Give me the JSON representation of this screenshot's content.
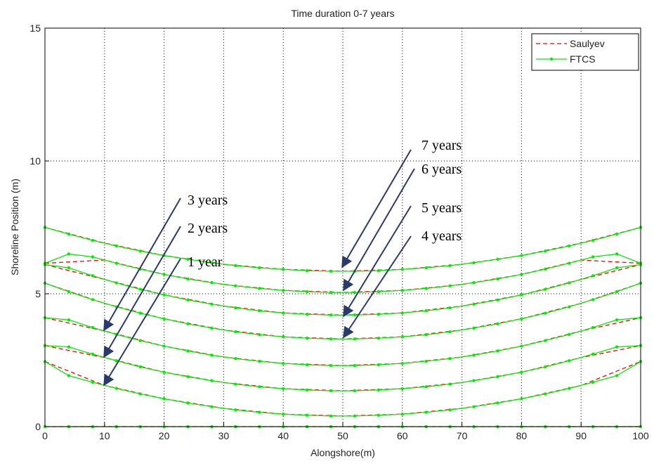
{
  "chart_data": {
    "type": "line",
    "title": "Time duration 0-7 years",
    "x_label": "Alongshore(m)",
    "y_label": "Shoreline Position (m)",
    "xlim": [
      0,
      100
    ],
    "ylim": [
      0,
      15
    ],
    "xticks": [
      0,
      10,
      20,
      30,
      40,
      50,
      60,
      70,
      80,
      90,
      100
    ],
    "yticks": [
      0,
      5,
      10,
      15
    ],
    "grid": true,
    "legend": "upper right",
    "series": [
      {
        "name": "Saulyev",
        "color": "#ff0000",
        "dash": true,
        "markers": false,
        "x": [
          0,
          10,
          20,
          30,
          40,
          50,
          60,
          70,
          80,
          90,
          100
        ],
        "values": [
          [
            0,
            0,
            0,
            0,
            0,
            0,
            0,
            0,
            0,
            0,
            0
          ],
          [
            2.45,
            1.55,
            1.05,
            0.69,
            0.47,
            0.4,
            0.47,
            0.69,
            1.05,
            1.55,
            2.45
          ],
          [
            3.05,
            2.6,
            2.05,
            1.66,
            1.43,
            1.35,
            1.43,
            1.66,
            2.05,
            2.6,
            3.05
          ],
          [
            4.1,
            3.6,
            3.03,
            2.62,
            2.38,
            2.3,
            2.38,
            2.62,
            3.03,
            3.6,
            4.1
          ],
          [
            5.4,
            4.64,
            4.06,
            3.64,
            3.38,
            3.3,
            3.38,
            3.64,
            4.06,
            4.64,
            5.4
          ],
          [
            6.1,
            5.54,
            4.96,
            4.54,
            4.28,
            4.2,
            4.28,
            4.54,
            4.96,
            5.54,
            6.1
          ],
          [
            6.15,
            6.27,
            5.73,
            5.35,
            5.13,
            5.05,
            5.13,
            5.35,
            5.73,
            6.27,
            6.15
          ],
          [
            7.5,
            6.91,
            6.44,
            6.11,
            5.92,
            5.85,
            5.92,
            6.11,
            6.44,
            6.91,
            7.5
          ]
        ]
      },
      {
        "name": "FTCS",
        "color": "#00ee00",
        "dash": false,
        "markers": true,
        "x": [
          0,
          4,
          8,
          12,
          16,
          20,
          24,
          28,
          32,
          36,
          40,
          44,
          48,
          52,
          56,
          60,
          64,
          68,
          72,
          76,
          80,
          84,
          88,
          92,
          96,
          100
        ],
        "values": [
          [
            0,
            0,
            0,
            0,
            0,
            0,
            0,
            0,
            0,
            0,
            0,
            0,
            0,
            0,
            0,
            0,
            0,
            0,
            0,
            0,
            0,
            0,
            0,
            0,
            0,
            0
          ],
          [
            2.45,
            1.92,
            1.67,
            1.44,
            1.23,
            1.05,
            0.89,
            0.75,
            0.63,
            0.54,
            0.47,
            0.43,
            0.4,
            0.4,
            0.43,
            0.47,
            0.54,
            0.63,
            0.75,
            0.89,
            1.05,
            1.23,
            1.44,
            1.67,
            1.92,
            2.45
          ],
          [
            3.05,
            3.0,
            2.73,
            2.48,
            2.25,
            2.05,
            1.88,
            1.73,
            1.6,
            1.5,
            1.43,
            1.38,
            1.35,
            1.35,
            1.38,
            1.43,
            1.5,
            1.6,
            1.73,
            1.88,
            2.05,
            2.25,
            2.48,
            2.73,
            3.0,
            3.05
          ],
          [
            4.1,
            4.02,
            3.73,
            3.47,
            3.24,
            3.03,
            2.85,
            2.69,
            2.56,
            2.46,
            2.38,
            2.33,
            2.3,
            2.3,
            2.33,
            2.38,
            2.46,
            2.56,
            2.69,
            2.85,
            3.03,
            3.24,
            3.47,
            3.73,
            4.02,
            4.1
          ],
          [
            5.4,
            5.08,
            4.78,
            4.51,
            4.27,
            4.06,
            3.87,
            3.71,
            3.57,
            3.46,
            3.38,
            3.33,
            3.3,
            3.3,
            3.33,
            3.38,
            3.46,
            3.57,
            3.71,
            3.87,
            4.06,
            4.27,
            4.51,
            4.78,
            5.08,
            5.4
          ],
          [
            6.1,
            5.98,
            5.68,
            5.41,
            5.17,
            4.96,
            4.77,
            4.61,
            4.47,
            4.36,
            4.28,
            4.23,
            4.2,
            4.2,
            4.23,
            4.28,
            4.36,
            4.47,
            4.61,
            4.77,
            4.96,
            5.17,
            5.41,
            5.68,
            5.98,
            6.1
          ],
          [
            6.15,
            6.5,
            6.39,
            6.15,
            5.93,
            5.73,
            5.56,
            5.42,
            5.3,
            5.2,
            5.13,
            5.08,
            5.05,
            5.05,
            5.08,
            5.13,
            5.2,
            5.3,
            5.42,
            5.56,
            5.73,
            5.93,
            6.15,
            6.39,
            6.5,
            6.15
          ],
          [
            7.5,
            7.25,
            7.01,
            6.8,
            6.61,
            6.44,
            6.3,
            6.17,
            6.06,
            5.98,
            5.92,
            5.87,
            5.85,
            5.85,
            5.87,
            5.92,
            5.98,
            6.06,
            6.17,
            6.3,
            6.44,
            6.61,
            6.8,
            7.01,
            7.25,
            7.5
          ]
        ]
      }
    ],
    "annotations": [
      "3 years",
      "2 years",
      "1 year",
      "7 years",
      "6 years",
      "5 years",
      "4 years"
    ]
  }
}
